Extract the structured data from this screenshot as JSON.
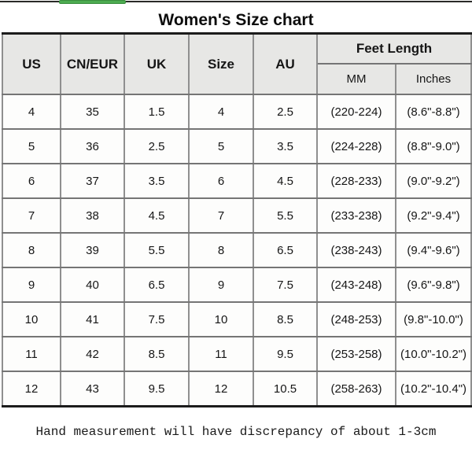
{
  "page": {
    "title": "Women's Size chart",
    "footer_note": "Hand measurement will have discrepancy of about 1-3cm"
  },
  "decor": {
    "top_line_color": "#2a2a28",
    "green_bar_color": "#4cab50",
    "green_bar_border_color": "#3a8d3f"
  },
  "table": {
    "headers": {
      "us": "US",
      "cn_eur": "CN/EUR",
      "uk": "UK",
      "size": "Size",
      "au": "AU",
      "feet_length": "Feet Length",
      "mm": "MM",
      "inches": "Inches"
    },
    "rows": [
      [
        "4",
        "35",
        "1.5",
        "4",
        "2.5",
        "(220-224)",
        "(8.6\"-8.8\")"
      ],
      [
        "5",
        "36",
        "2.5",
        "5",
        "3.5",
        "(224-228)",
        "(8.8\"-9.0\")"
      ],
      [
        "6",
        "37",
        "3.5",
        "6",
        "4.5",
        "(228-233)",
        "(9.0\"-9.2\")"
      ],
      [
        "7",
        "38",
        "4.5",
        "7",
        "5.5",
        "(233-238)",
        "(9.2\"-9.4\")"
      ],
      [
        "8",
        "39",
        "5.5",
        "8",
        "6.5",
        "(238-243)",
        "(9.4\"-9.6\")"
      ],
      [
        "9",
        "40",
        "6.5",
        "9",
        "7.5",
        "(243-248)",
        "(9.6\"-9.8\")"
      ],
      [
        "10",
        "41",
        "7.5",
        "10",
        "8.5",
        "(248-253)",
        "(9.8\"-10.0\")"
      ],
      [
        "11",
        "42",
        "8.5",
        "11",
        "9.5",
        "(253-258)",
        "(10.0\"-10.2\")"
      ],
      [
        "12",
        "43",
        "9.5",
        "12",
        "10.5",
        "(258-263)",
        "(10.2\"-10.4\")"
      ]
    ]
  }
}
